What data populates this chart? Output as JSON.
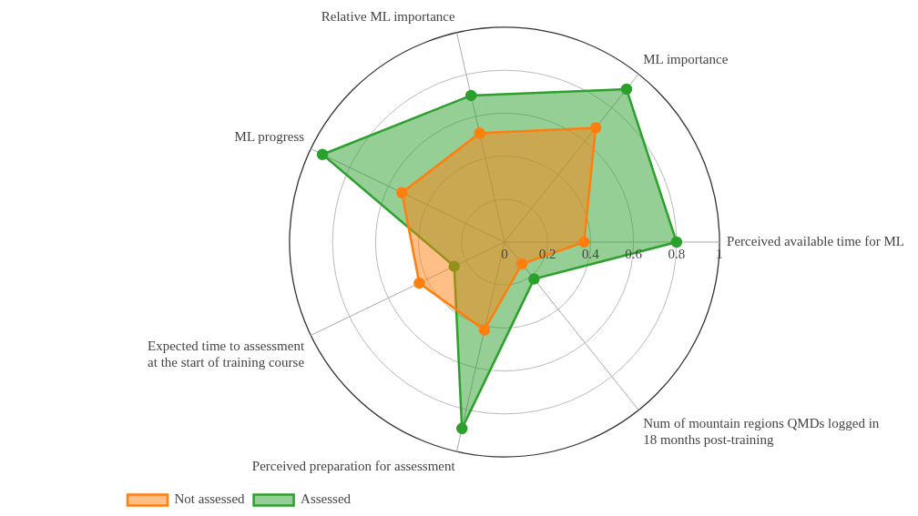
{
  "chart_data": {
    "type": "radar",
    "categories": [
      "Relative ML importance",
      "ML importance",
      "Perceived available time for ML",
      "Num of mountain regions QMDs logged in\n18 months post-training",
      "Perceived preparation for assessment",
      "Expected time to assessment\nat the start of training course",
      "ML progress"
    ],
    "series": [
      {
        "name": "Not assessed",
        "color": "#ff7f0e",
        "values": [
          0.52,
          0.68,
          0.37,
          0.13,
          0.42,
          0.44,
          0.53
        ]
      },
      {
        "name": "Assessed",
        "color": "#2ca02c",
        "values": [
          0.7,
          0.91,
          0.8,
          0.22,
          0.89,
          0.26,
          0.94
        ]
      }
    ],
    "ylim": [
      0,
      1
    ],
    "yticks": [
      0,
      0.2,
      0.4,
      0.6,
      0.8,
      1
    ],
    "grid": true,
    "legend": "bottom left",
    "marker": "circle"
  }
}
